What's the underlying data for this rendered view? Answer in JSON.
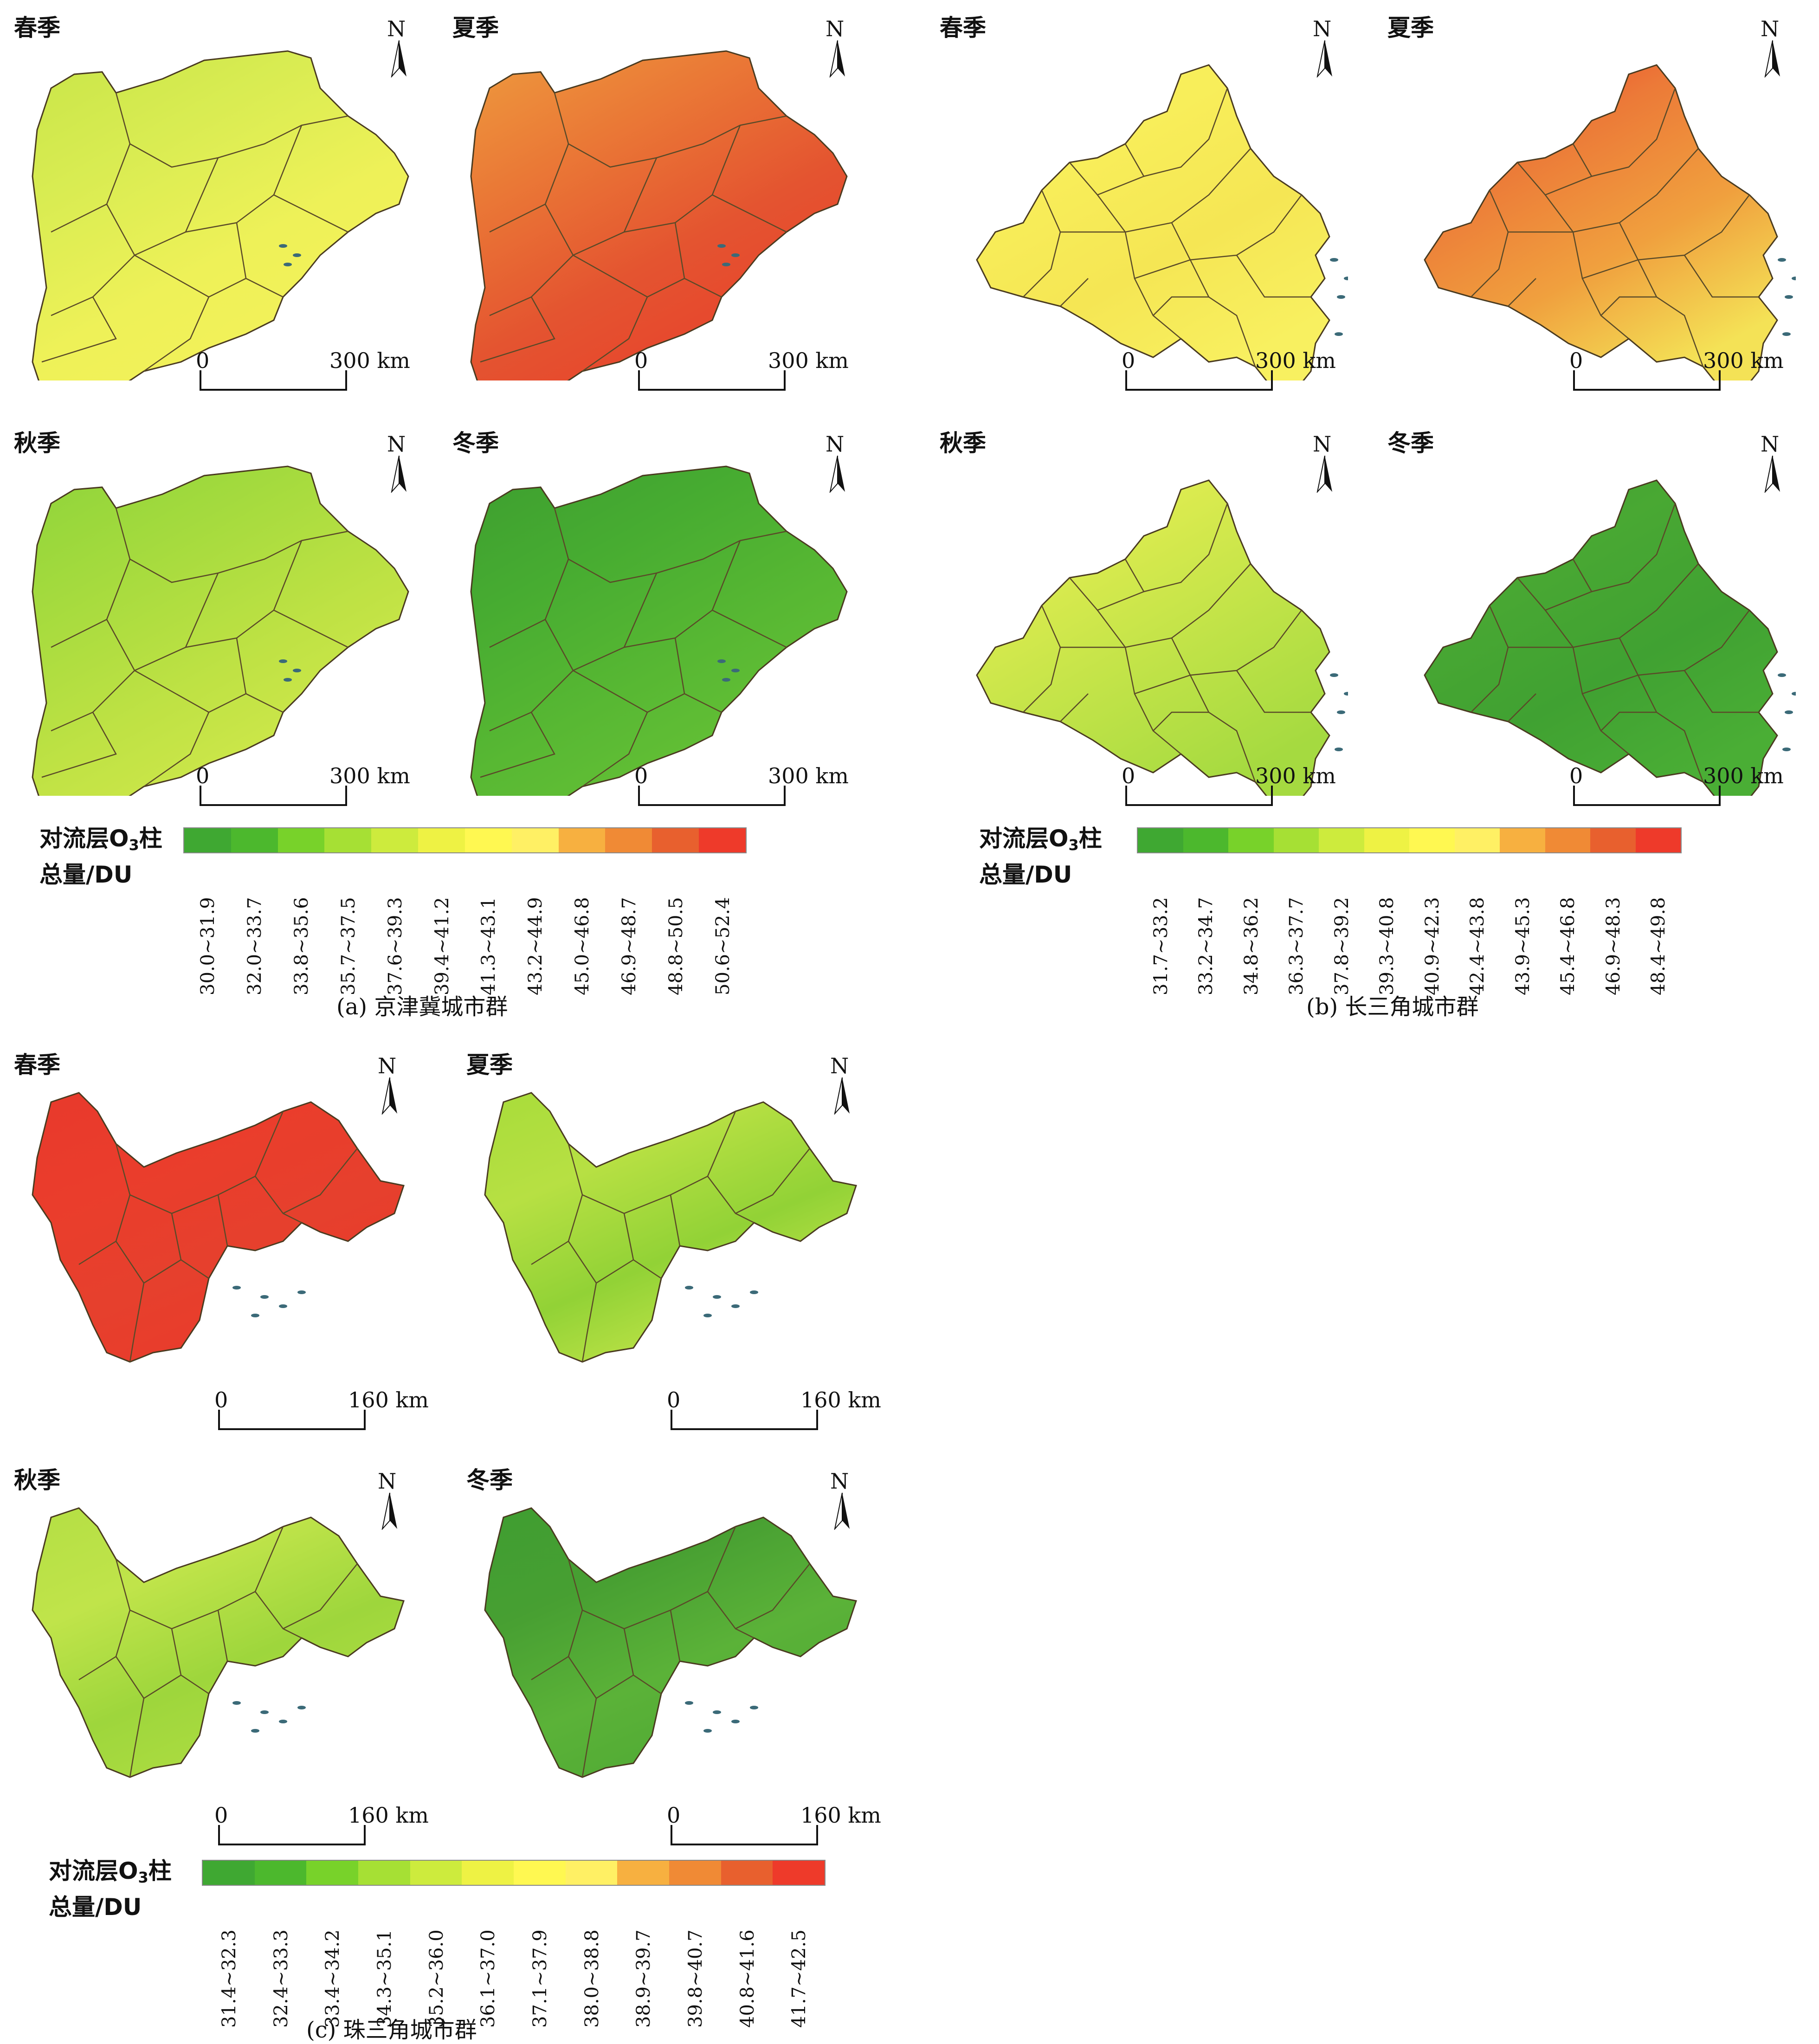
{
  "axis_unit": "km",
  "north_label": "N",
  "groups": [
    {
      "id": "a",
      "caption": "(a)  京津冀城市群",
      "scale_zero": "0",
      "scale_end": "300 km",
      "legend": {
        "title_line1_a": "对流层O",
        "title_sub": "3",
        "title_line1_b": "柱",
        "title_line2": "总量/DU",
        "bins": [
          "30.0~31.9",
          "32.0~33.7",
          "33.8~35.6",
          "35.7~37.5",
          "37.6~39.3",
          "39.4~41.2",
          "41.3~43.1",
          "43.2~44.9",
          "45.0~46.8",
          "46.9~48.7",
          "48.8~50.5",
          "50.6~52.4"
        ],
        "colors": [
          "#3fa832",
          "#4cb82d",
          "#78d22a",
          "#a6e034",
          "#cdeb3d",
          "#eef244",
          "#fff851",
          "#fff064",
          "#f7b040",
          "#f08a35",
          "#e8602e",
          "#ee3a2a"
        ]
      },
      "panels": [
        {
          "season": "春季",
          "colors": [
            "#c8e548",
            "#d9ec52",
            "#eef158",
            "#f4f15a"
          ]
        },
        {
          "season": "夏季",
          "colors": [
            "#ee9b3e",
            "#ea7836",
            "#e45430",
            "#e8412c"
          ]
        },
        {
          "season": "秋季",
          "colors": [
            "#8ed43a",
            "#a6db3e",
            "#bfe244",
            "#d3e94c"
          ]
        },
        {
          "season": "冬季",
          "colors": [
            "#3d9e30",
            "#47ac31",
            "#58b833",
            "#67c236"
          ]
        }
      ]
    },
    {
      "id": "b",
      "caption": "(b)  长三角城市群",
      "scale_zero": "0",
      "scale_end": "300 km",
      "legend": {
        "title_line1_a": "对流层O",
        "title_sub": "3",
        "title_line1_b": "柱",
        "title_line2": "总量/DU",
        "bins": [
          "31.7~33.2",
          "33.2~34.7",
          "34.8~36.2",
          "36.3~37.7",
          "37.8~39.2",
          "39.3~40.8",
          "40.9~42.3",
          "42.4~43.8",
          "43.9~45.3",
          "45.4~46.8",
          "46.9~48.3",
          "48.4~49.8"
        ],
        "colors": [
          "#3fa832",
          "#4cb82d",
          "#78d22a",
          "#a6e034",
          "#cdeb3d",
          "#eef244",
          "#fff851",
          "#fff064",
          "#f7b040",
          "#f08a35",
          "#e8602e",
          "#ee3a2a"
        ]
      },
      "panels": [
        {
          "season": "春季",
          "colors": [
            "#f6f25e",
            "#f8ee5a",
            "#f5e654",
            "#f8f060"
          ]
        },
        {
          "season": "夏季",
          "colors": [
            "#ee3a2a",
            "#ec7a38",
            "#f0a03e",
            "#f4e256"
          ]
        },
        {
          "season": "秋季",
          "colors": [
            "#eef258",
            "#d8ea4e",
            "#bee247",
            "#a5da40"
          ]
        },
        {
          "season": "冬季",
          "colors": [
            "#3f9e31",
            "#49a833",
            "#40a132",
            "#4aae35"
          ]
        }
      ]
    },
    {
      "id": "c",
      "caption": "(c)  珠三角城市群",
      "scale_zero": "0",
      "scale_end": "160 km",
      "legend": {
        "title_line1_a": "对流层O",
        "title_sub": "3",
        "title_line1_b": "柱",
        "title_line2": "总量/DU",
        "bins": [
          "31.4~32.3",
          "32.4~33.3",
          "33.4~34.2",
          "34.3~35.1",
          "35.2~36.0",
          "36.1~37.0",
          "37.1~37.9",
          "38.0~38.8",
          "38.9~39.7",
          "39.8~40.7",
          "40.8~41.6",
          "41.7~42.5"
        ],
        "colors": [
          "#3fa832",
          "#4cb82d",
          "#78d22a",
          "#a6e034",
          "#cdeb3d",
          "#eef244",
          "#fff851",
          "#fff064",
          "#f7b040",
          "#f08a35",
          "#e8602e",
          "#ee3a2a"
        ]
      },
      "panels": [
        {
          "season": "春季",
          "colors": [
            "#e8392c",
            "#ea3d2c",
            "#e6402d",
            "#ea3a2b"
          ]
        },
        {
          "season": "夏季",
          "colors": [
            "#a8dc3a",
            "#b7e043",
            "#92d236",
            "#c6e64a"
          ]
        },
        {
          "season": "秋季",
          "colors": [
            "#b4df44",
            "#c0e44a",
            "#9ed63c",
            "#b0de42"
          ]
        },
        {
          "season": "冬季",
          "colors": [
            "#3f9e31",
            "#479f32",
            "#5bb238",
            "#4fa934"
          ]
        }
      ]
    }
  ]
}
